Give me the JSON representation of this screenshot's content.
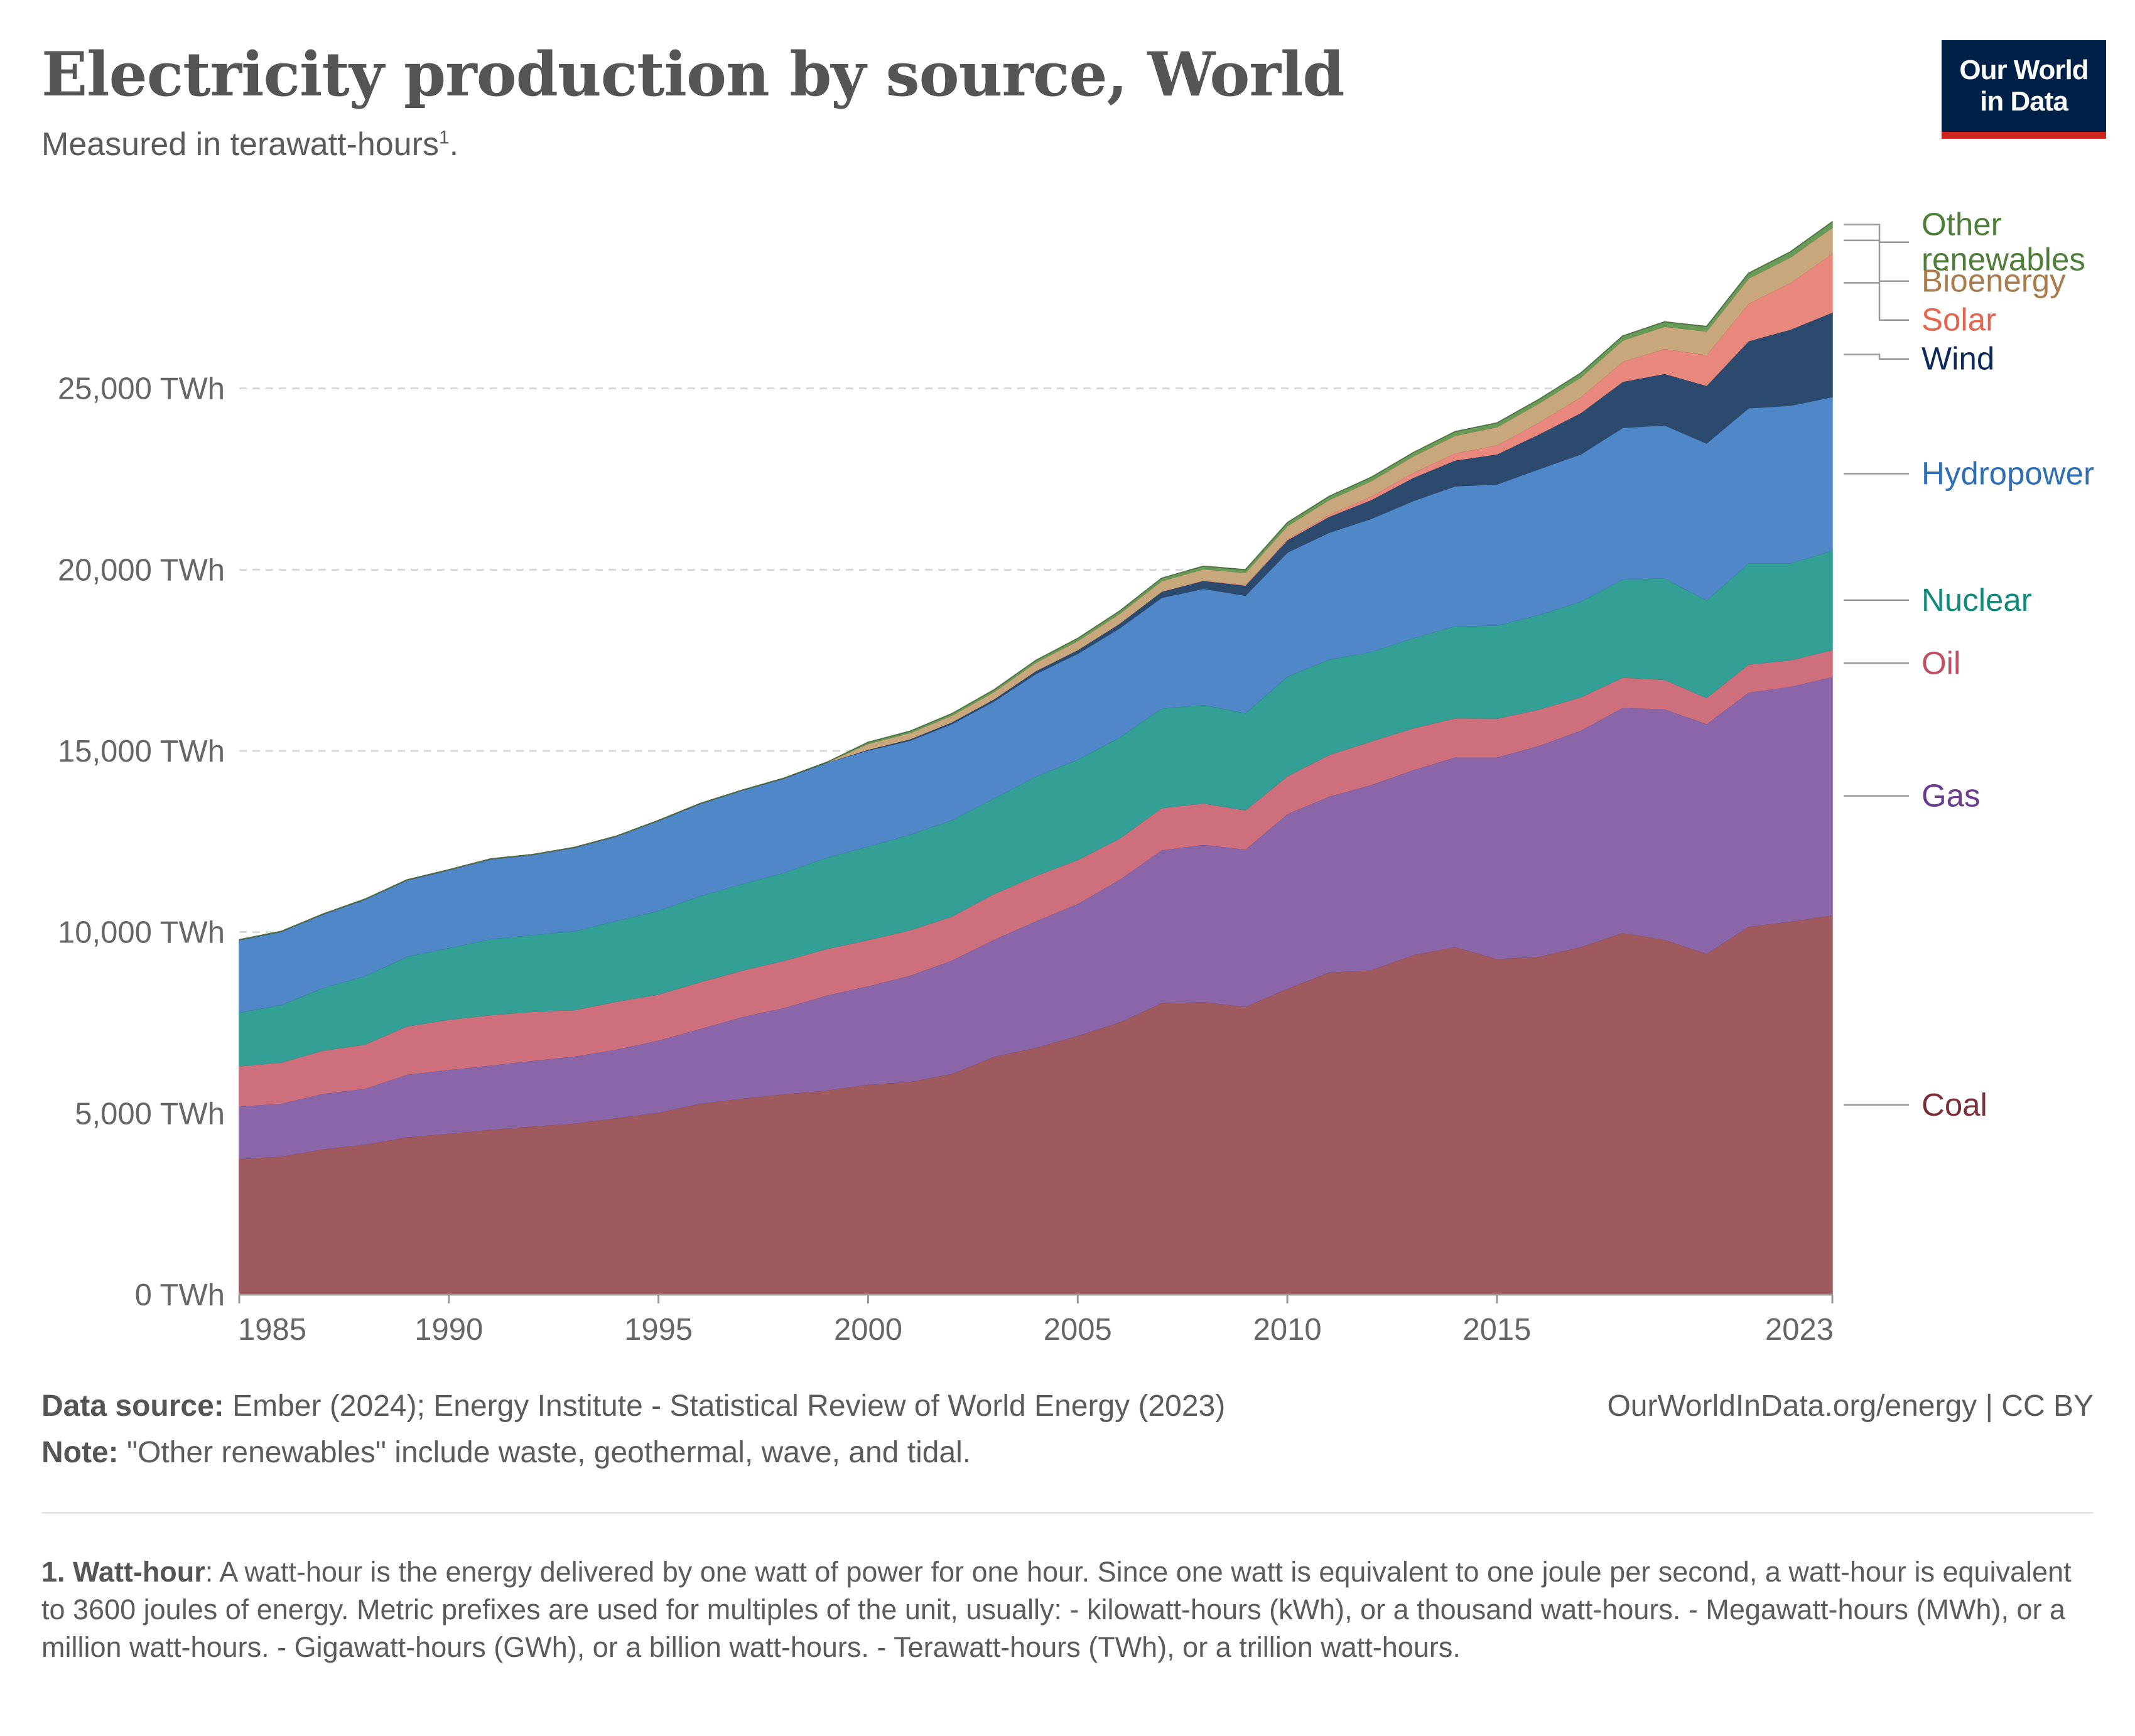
{
  "header": {
    "title": "Electricity production by source, World",
    "subtitle": "Measured in terawatt-hours",
    "subtitle_sup": "1",
    "subtitle_end": "."
  },
  "logo": {
    "line1": "Our World",
    "line2": "in Data"
  },
  "footer": {
    "source_label": "Data source:",
    "source_text": "Ember (2024); Energy Institute - Statistical Review of World Energy (2023)",
    "note_label": "Note:",
    "note_text": "\"Other renewables\" include waste, geothermal, wave, and tidal.",
    "url": "OurWorldInData.org/energy | CC BY"
  },
  "footnote": {
    "label": "1. Watt-hour",
    "text": ": A watt-hour is the energy delivered by one watt of power for one hour. Since one watt is equivalent to one joule per second, a watt-hour is equivalent to 3600 joules of energy. Metric prefixes are used for multiples of the unit, usually: - kilowatt-hours (kWh), or a thousand watt-hours. - Megawatt-hours (MWh), or a million watt-hours. - Gigawatt-hours (GWh), or a billion watt-hours. - Terawatt-hours (TWh), or a trillion watt-hours."
  },
  "chart_data": {
    "type": "area",
    "stacked": true,
    "title": "Electricity production by source, World",
    "ylabel": "",
    "xlabel": "",
    "ylim": [
      0,
      30000
    ],
    "y_ticks": [
      0,
      5000,
      10000,
      15000,
      20000,
      25000
    ],
    "y_tick_labels": [
      "0 TWh",
      "5,000 TWh",
      "10,000 TWh",
      "15,000 TWh",
      "20,000 TWh",
      "25,000 TWh"
    ],
    "x_ticks": [
      1985,
      1990,
      1995,
      2000,
      2005,
      2010,
      2015,
      2023
    ],
    "x_tick_labels": [
      "1985",
      "1990",
      "1995",
      "2000",
      "2005",
      "2010",
      "2015",
      "2023"
    ],
    "grid": "horizontal dashed",
    "legend": "right, labels at series ends",
    "x": [
      1985,
      1986,
      1987,
      1988,
      1989,
      1990,
      1991,
      1992,
      1993,
      1994,
      1995,
      1996,
      1997,
      1998,
      1999,
      2000,
      2001,
      2002,
      2003,
      2004,
      2005,
      2006,
      2007,
      2008,
      2009,
      2010,
      2011,
      2012,
      2013,
      2014,
      2015,
      2016,
      2017,
      2018,
      2019,
      2020,
      2021,
      2022,
      2023
    ],
    "series": [
      {
        "name": "Coal",
        "color": "#9e5a5f",
        "label_color": "#7a2e35",
        "values": [
          3750,
          3820,
          4020,
          4150,
          4350,
          4450,
          4560,
          4650,
          4730,
          4880,
          5030,
          5280,
          5420,
          5540,
          5640,
          5800,
          5880,
          6100,
          6570,
          6820,
          7150,
          7520,
          8050,
          8080,
          7950,
          8450,
          8900,
          8960,
          9380,
          9600,
          9270,
          9330,
          9600,
          9990,
          9800,
          9410,
          10160,
          10300,
          10470
        ]
      },
      {
        "name": "Gas",
        "color": "#8a66a8",
        "label_color": "#6b3d8e",
        "values": [
          1450,
          1460,
          1530,
          1540,
          1730,
          1760,
          1770,
          1810,
          1850,
          1890,
          1990,
          2060,
          2250,
          2380,
          2620,
          2720,
          2930,
          3130,
          3230,
          3490,
          3640,
          3940,
          4220,
          4340,
          4340,
          4820,
          4850,
          5110,
          5100,
          5230,
          5560,
          5820,
          5970,
          6210,
          6360,
          6340,
          6460,
          6480,
          6580
        ]
      },
      {
        "name": "Oil",
        "color": "#cd6f7c",
        "label_color": "#c15065",
        "values": [
          1110,
          1130,
          1190,
          1220,
          1330,
          1380,
          1390,
          1350,
          1280,
          1320,
          1270,
          1290,
          1280,
          1300,
          1280,
          1270,
          1250,
          1210,
          1260,
          1250,
          1210,
          1130,
          1160,
          1140,
          1080,
          1040,
          1150,
          1200,
          1150,
          1080,
          1070,
          1000,
          920,
          830,
          810,
          720,
          770,
          730,
          740
        ]
      },
      {
        "name": "Nuclear",
        "color": "#339f95",
        "label_color": "#13897a",
        "values": [
          1480,
          1590,
          1730,
          1890,
          1920,
          1980,
          2100,
          2120,
          2180,
          2230,
          2310,
          2380,
          2390,
          2430,
          2520,
          2580,
          2640,
          2660,
          2640,
          2740,
          2770,
          2790,
          2750,
          2720,
          2680,
          2750,
          2630,
          2470,
          2490,
          2540,
          2570,
          2610,
          2640,
          2710,
          2800,
          2690,
          2800,
          2680,
          2740
        ]
      },
      {
        "name": "Hydropower",
        "color": "#5087c8",
        "label_color": "#2f6eb5",
        "values": [
          2000,
          2020,
          2030,
          2110,
          2110,
          2150,
          2200,
          2210,
          2300,
          2330,
          2480,
          2540,
          2580,
          2600,
          2620,
          2650,
          2590,
          2650,
          2670,
          2830,
          2920,
          3010,
          3050,
          3200,
          3240,
          3420,
          3500,
          3670,
          3780,
          3860,
          3890,
          4020,
          4060,
          4180,
          4220,
          4330,
          4270,
          4340,
          4240
        ]
      },
      {
        "name": "Wind",
        "color": "#2c4a6e",
        "label_color": "#0f2a5a",
        "values": [
          0,
          0,
          0,
          0,
          0,
          0,
          0,
          0,
          0,
          0,
          0,
          0,
          0,
          0,
          0,
          20,
          40,
          50,
          60,
          80,
          100,
          130,
          170,
          220,
          280,
          340,
          440,
          520,
          640,
          710,
          830,
          960,
          1140,
          1270,
          1420,
          1590,
          1850,
          2100,
          2330
        ]
      },
      {
        "name": "Solar",
        "color": "#e8877c",
        "label_color": "#e2654f",
        "values": [
          0,
          0,
          0,
          0,
          0,
          0,
          0,
          0,
          0,
          0,
          0,
          0,
          0,
          0,
          0,
          0,
          0,
          0,
          0,
          0,
          0,
          0,
          0,
          10,
          20,
          30,
          60,
          100,
          140,
          200,
          250,
          330,
          440,
          560,
          690,
          850,
          1040,
          1290,
          1630
        ]
      },
      {
        "name": "Bioenergy",
        "color": "#c9a77c",
        "label_color": "#a87c4f",
        "values": [
          0,
          0,
          0,
          0,
          0,
          0,
          0,
          0,
          0,
          0,
          0,
          0,
          0,
          0,
          0,
          160,
          170,
          180,
          200,
          230,
          250,
          270,
          290,
          310,
          330,
          360,
          400,
          420,
          450,
          480,
          500,
          520,
          540,
          580,
          610,
          650,
          690,
          700,
          710
        ]
      },
      {
        "name": "Other renewables",
        "color": "#6a9a58",
        "label_color": "#4f7d3a",
        "values": [
          0,
          0,
          0,
          0,
          0,
          0,
          0,
          0,
          0,
          0,
          0,
          0,
          0,
          0,
          0,
          40,
          45,
          50,
          55,
          60,
          65,
          70,
          75,
          80,
          80,
          90,
          95,
          100,
          100,
          110,
          110,
          110,
          115,
          120,
          130,
          130,
          140,
          150,
          160
        ]
      }
    ]
  }
}
